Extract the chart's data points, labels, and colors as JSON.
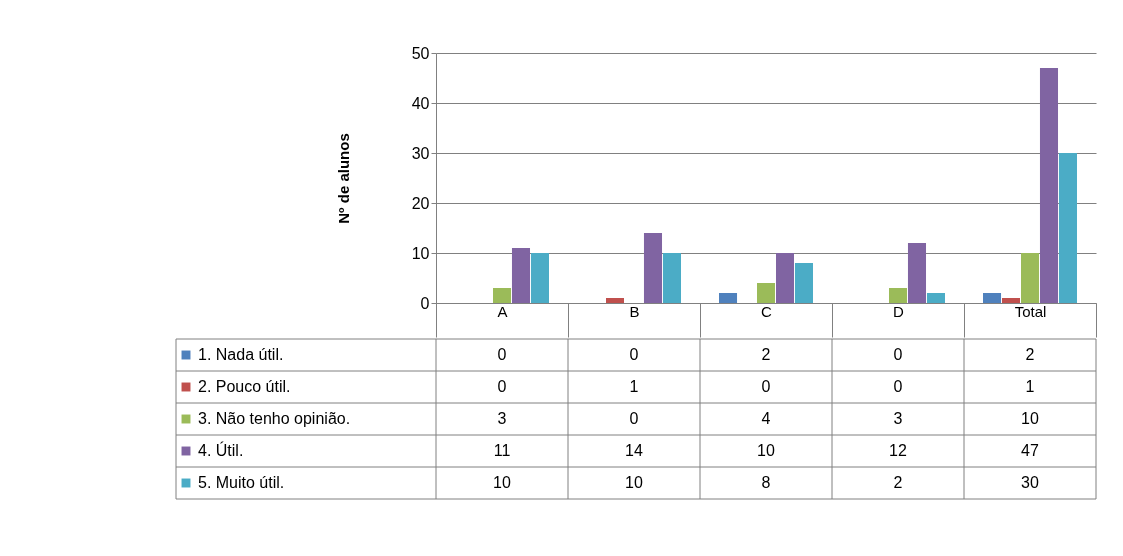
{
  "chart_data": {
    "type": "bar",
    "ylabel": "Nº de alunos",
    "categories": [
      "A",
      "B",
      "C",
      "D",
      "Total"
    ],
    "series": [
      {
        "name": "1. Nada útil.",
        "color": "#4f81bd",
        "values": [
          0,
          0,
          2,
          0,
          2
        ]
      },
      {
        "name": "2. Pouco útil.",
        "color": "#c0504d",
        "values": [
          0,
          1,
          0,
          0,
          1
        ]
      },
      {
        "name": "3. Não tenho opinião.",
        "color": "#9bbb59",
        "values": [
          3,
          0,
          4,
          3,
          10
        ]
      },
      {
        "name": "4. Útil.",
        "color": "#8064a2",
        "values": [
          11,
          14,
          10,
          12,
          47
        ]
      },
      {
        "name": "5. Muito útil.",
        "color": "#4bacc6",
        "values": [
          10,
          10,
          8,
          2,
          30
        ]
      }
    ],
    "ylim": [
      0,
      50
    ],
    "yticks": [
      0,
      10,
      20,
      30,
      40,
      50
    ],
    "grid": "y",
    "legend": "bottom left",
    "data_labels": true
  }
}
